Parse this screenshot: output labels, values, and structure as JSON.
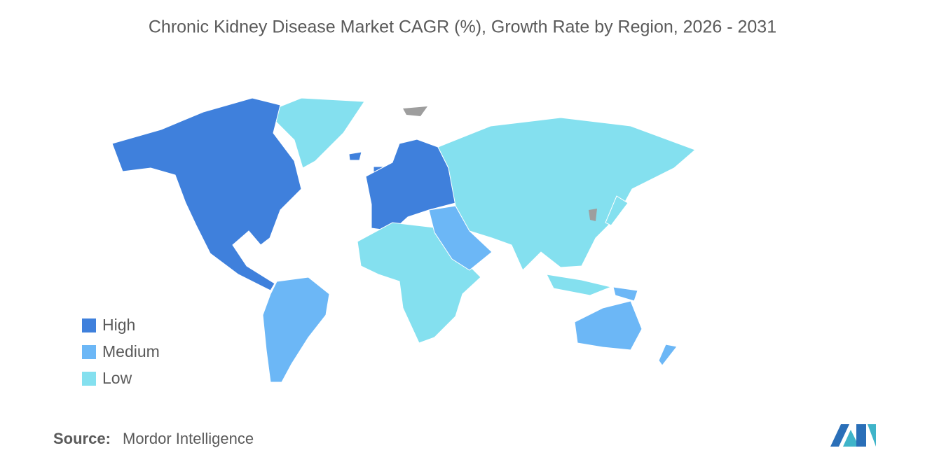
{
  "title": "Chronic Kidney Disease Market CAGR (%), Growth Rate by Region, 2026 - 2031",
  "legend": [
    {
      "label": "High",
      "color": "#3f80dc"
    },
    {
      "label": "Medium",
      "color": "#6cb7f6"
    },
    {
      "label": "Low",
      "color": "#84e0ef"
    }
  ],
  "source": {
    "label": "Source:",
    "text": "Mordor Intelligence"
  }
}
